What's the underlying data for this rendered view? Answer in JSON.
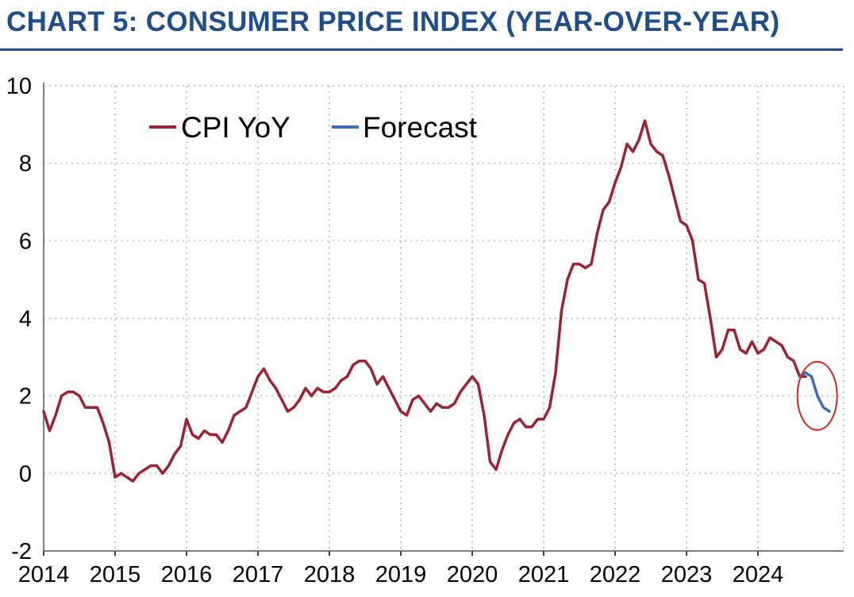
{
  "title": "CHART 5: CONSUMER PRICE INDEX (YEAR-OVER-YEAR)",
  "colors": {
    "title": "#1f4e8c",
    "cpi": "#9b2335",
    "forecast": "#3e6fb3",
    "highlight": "#e02020",
    "grid": "#c8c8c8"
  },
  "chart_data": {
    "type": "line",
    "title": "CHART 5: CONSUMER PRICE INDEX (YEAR-OVER-YEAR)",
    "xlabel": "",
    "ylabel": "",
    "ylim": [
      -2,
      10
    ],
    "xlim": [
      2014,
      2025.2
    ],
    "grid": true,
    "legend_position": "top-left",
    "y_ticks": [
      "10",
      "8",
      "6",
      "4",
      "2",
      "0",
      "-2"
    ],
    "x_ticks": [
      "2014",
      "2015",
      "2016",
      "2017",
      "2018",
      "2019",
      "2020",
      "2021",
      "2022",
      "2023",
      "2024"
    ],
    "series": [
      {
        "name": "CPI YoY",
        "color": "#9b2335",
        "x": [
          2014.0,
          2014.083,
          2014.167,
          2014.25,
          2014.333,
          2014.417,
          2014.5,
          2014.583,
          2014.667,
          2014.75,
          2014.833,
          2014.917,
          2015.0,
          2015.083,
          2015.167,
          2015.25,
          2015.333,
          2015.417,
          2015.5,
          2015.583,
          2015.667,
          2015.75,
          2015.833,
          2015.917,
          2016.0,
          2016.083,
          2016.167,
          2016.25,
          2016.333,
          2016.417,
          2016.5,
          2016.583,
          2016.667,
          2016.75,
          2016.833,
          2016.917,
          2017.0,
          2017.083,
          2017.167,
          2017.25,
          2017.333,
          2017.417,
          2017.5,
          2017.583,
          2017.667,
          2017.75,
          2017.833,
          2017.917,
          2018.0,
          2018.083,
          2018.167,
          2018.25,
          2018.333,
          2018.417,
          2018.5,
          2018.583,
          2018.667,
          2018.75,
          2018.833,
          2018.917,
          2019.0,
          2019.083,
          2019.167,
          2019.25,
          2019.333,
          2019.417,
          2019.5,
          2019.583,
          2019.667,
          2019.75,
          2019.833,
          2019.917,
          2020.0,
          2020.083,
          2020.167,
          2020.25,
          2020.333,
          2020.417,
          2020.5,
          2020.583,
          2020.667,
          2020.75,
          2020.833,
          2020.917,
          2021.0,
          2021.083,
          2021.167,
          2021.25,
          2021.333,
          2021.417,
          2021.5,
          2021.583,
          2021.667,
          2021.75,
          2021.833,
          2021.917,
          2022.0,
          2022.083,
          2022.167,
          2022.25,
          2022.333,
          2022.417,
          2022.5,
          2022.583,
          2022.667,
          2022.75,
          2022.833,
          2022.917,
          2023.0,
          2023.083,
          2023.167,
          2023.25,
          2023.333,
          2023.417,
          2023.5,
          2023.583,
          2023.667,
          2023.75,
          2023.833,
          2023.917,
          2024.0,
          2024.083,
          2024.167,
          2024.25,
          2024.333,
          2024.417,
          2024.5,
          2024.583,
          2024.667
        ],
        "values": [
          1.6,
          1.1,
          1.5,
          2.0,
          2.1,
          2.1,
          2.0,
          1.7,
          1.7,
          1.7,
          1.3,
          0.8,
          -0.1,
          0.0,
          -0.1,
          -0.2,
          0.0,
          0.1,
          0.2,
          0.2,
          0.0,
          0.2,
          0.5,
          0.7,
          1.4,
          1.0,
          0.9,
          1.1,
          1.0,
          1.0,
          0.8,
          1.1,
          1.5,
          1.6,
          1.7,
          2.1,
          2.5,
          2.7,
          2.4,
          2.2,
          1.9,
          1.6,
          1.7,
          1.9,
          2.2,
          2.0,
          2.2,
          2.1,
          2.1,
          2.2,
          2.4,
          2.5,
          2.8,
          2.9,
          2.9,
          2.7,
          2.3,
          2.5,
          2.2,
          1.9,
          1.6,
          1.5,
          1.9,
          2.0,
          1.8,
          1.6,
          1.8,
          1.7,
          1.7,
          1.8,
          2.1,
          2.3,
          2.5,
          2.3,
          1.5,
          0.3,
          0.1,
          0.6,
          1.0,
          1.3,
          1.4,
          1.2,
          1.2,
          1.4,
          1.4,
          1.7,
          2.6,
          4.2,
          5.0,
          5.4,
          5.4,
          5.3,
          5.4,
          6.2,
          6.8,
          7.0,
          7.5,
          7.9,
          8.5,
          8.3,
          8.6,
          9.1,
          8.5,
          8.3,
          8.2,
          7.7,
          7.1,
          6.5,
          6.4,
          6.0,
          5.0,
          4.9,
          4.0,
          3.0,
          3.2,
          3.7,
          3.7,
          3.2,
          3.1,
          3.4,
          3.1,
          3.2,
          3.5,
          3.4,
          3.3,
          3.0,
          2.9,
          2.5,
          2.5
        ]
      },
      {
        "name": "Forecast",
        "color": "#3e6fb3",
        "x": [
          2024.583,
          2024.667,
          2024.75,
          2024.833,
          2024.917,
          2025.0
        ],
        "values": [
          2.5,
          2.6,
          2.5,
          2.0,
          1.7,
          1.6
        ]
      }
    ],
    "annotations": [
      {
        "type": "circle",
        "description": "highlight around forecast",
        "center": [
          2024.83,
          2.0
        ]
      }
    ]
  }
}
